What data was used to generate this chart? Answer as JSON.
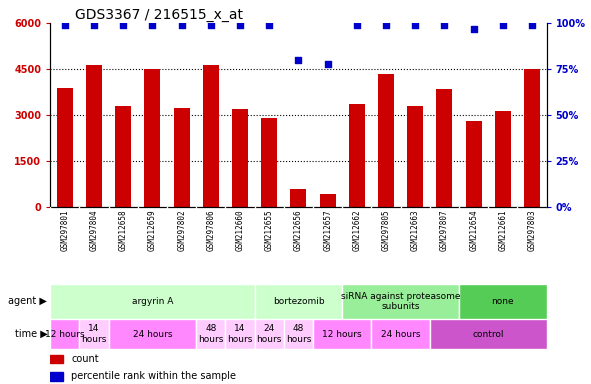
{
  "title": "GDS3367 / 216515_x_at",
  "samples": [
    "GSM297801",
    "GSM297804",
    "GSM212658",
    "GSM212659",
    "GSM297802",
    "GSM297806",
    "GSM212660",
    "GSM212655",
    "GSM212656",
    "GSM212657",
    "GSM212662",
    "GSM297805",
    "GSM212663",
    "GSM297807",
    "GSM212654",
    "GSM212661",
    "GSM297803"
  ],
  "counts": [
    3900,
    4650,
    3300,
    4500,
    3250,
    4650,
    3200,
    2900,
    600,
    450,
    3350,
    4350,
    3300,
    3850,
    2800,
    3150,
    4500
  ],
  "percentiles": [
    99,
    99,
    99,
    99,
    99,
    99,
    99,
    99,
    80,
    78,
    99,
    99,
    99,
    99,
    97,
    99,
    99
  ],
  "bar_color": "#cc0000",
  "dot_color": "#0000cc",
  "ylim_left": [
    0,
    6000
  ],
  "ylim_right": [
    0,
    100
  ],
  "yticks_left": [
    0,
    1500,
    3000,
    4500,
    6000
  ],
  "yticks_right": [
    0,
    25,
    50,
    75,
    100
  ],
  "ytick_labels_left": [
    "0",
    "1500",
    "3000",
    "4500",
    "6000"
  ],
  "ytick_labels_right": [
    "0%",
    "25%",
    "50%",
    "75%",
    "100%"
  ],
  "agent_groups": [
    {
      "label": "argyrin A",
      "start": 0,
      "end": 7,
      "color": "#ccffcc"
    },
    {
      "label": "bortezomib",
      "start": 7,
      "end": 10,
      "color": "#ccffcc"
    },
    {
      "label": "siRNA against proteasome\nsubunits",
      "start": 10,
      "end": 14,
      "color": "#99ee99"
    },
    {
      "label": "none",
      "start": 14,
      "end": 17,
      "color": "#55cc55"
    }
  ],
  "time_layout": [
    {
      "label": "12 hours",
      "start": 0,
      "end": 1,
      "color": "#ff88ff"
    },
    {
      "label": "14\nhours",
      "start": 1,
      "end": 2,
      "color": "#ffccff"
    },
    {
      "label": "24 hours",
      "start": 2,
      "end": 5,
      "color": "#ff88ff"
    },
    {
      "label": "48\nhours",
      "start": 5,
      "end": 6,
      "color": "#ffccff"
    },
    {
      "label": "14\nhours",
      "start": 6,
      "end": 7,
      "color": "#ffccff"
    },
    {
      "label": "24\nhours",
      "start": 7,
      "end": 8,
      "color": "#ffccff"
    },
    {
      "label": "48\nhours",
      "start": 8,
      "end": 9,
      "color": "#ffccff"
    },
    {
      "label": "12 hours",
      "start": 9,
      "end": 11,
      "color": "#ff88ff"
    },
    {
      "label": "24 hours",
      "start": 11,
      "end": 13,
      "color": "#ff88ff"
    },
    {
      "label": "control",
      "start": 13,
      "end": 17,
      "color": "#cc55cc"
    }
  ],
  "legend_count_color": "#cc0000",
  "legend_dot_color": "#0000cc",
  "sample_label_area_color": "#cccccc",
  "title_fontsize": 10,
  "tick_fontsize": 7,
  "sample_fontsize": 5.5,
  "annotation_fontsize": 6.5,
  "legend_fontsize": 7
}
